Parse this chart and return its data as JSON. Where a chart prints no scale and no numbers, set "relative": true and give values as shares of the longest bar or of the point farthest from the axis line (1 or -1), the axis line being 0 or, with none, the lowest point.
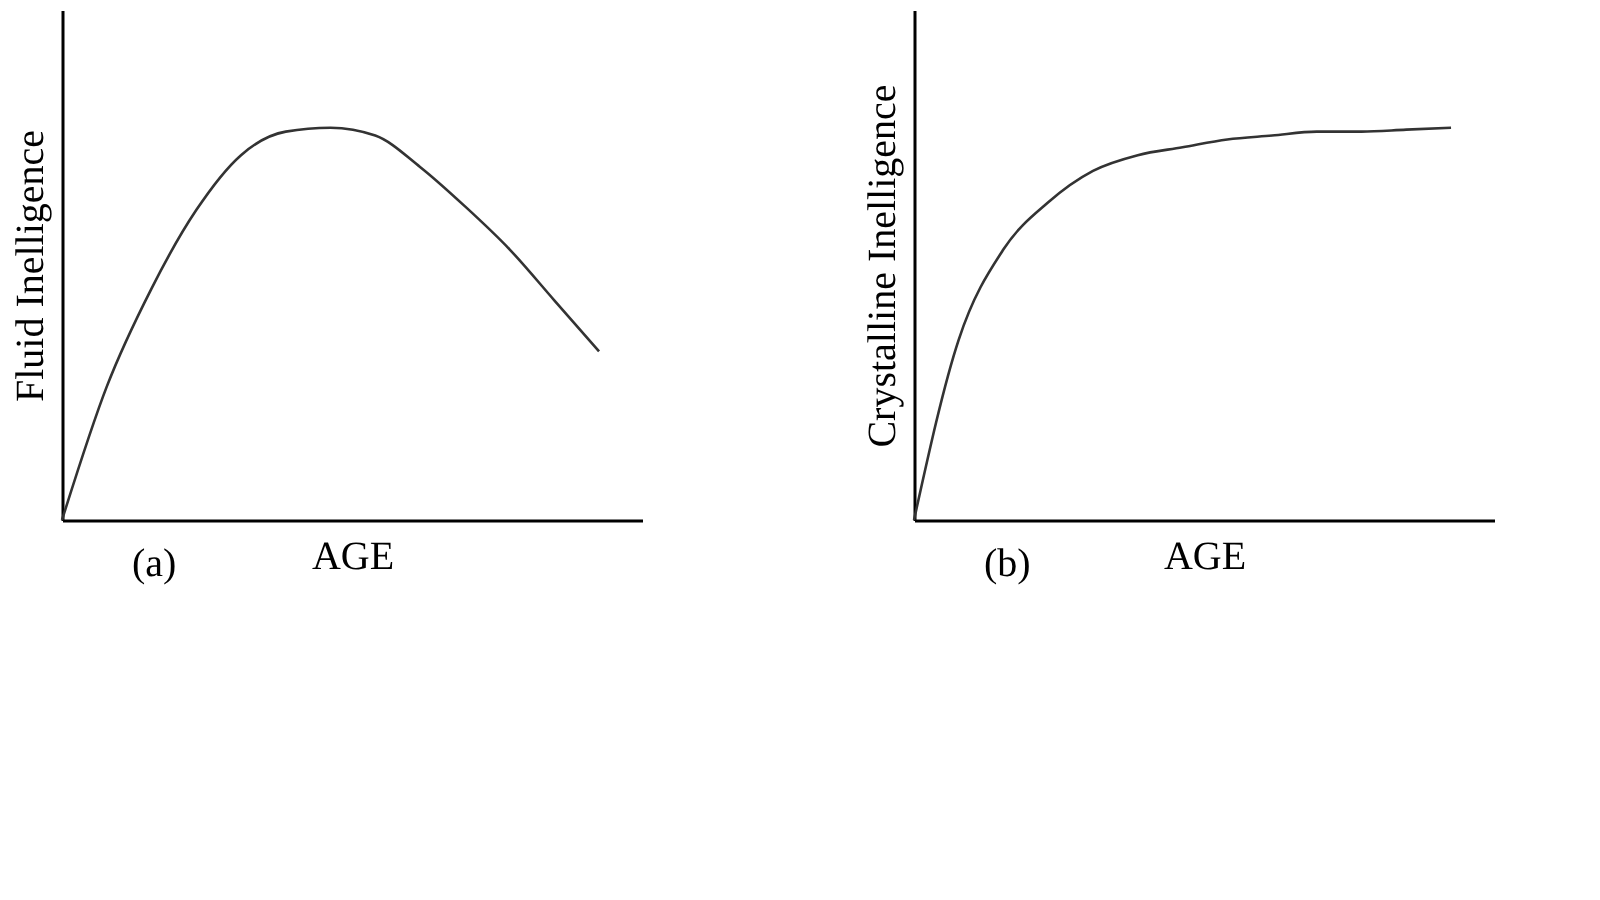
{
  "chart_data": [
    {
      "type": "line",
      "relative": true,
      "xlabel": "AGE",
      "ylabel": "Fluid Inelligence",
      "annotations": [
        "(a)"
      ],
      "color": "#333333",
      "tick_labels": false,
      "grid": false,
      "categories": [
        null,
        null,
        null,
        null,
        null,
        null,
        null,
        null,
        null,
        null,
        null,
        null,
        null
      ],
      "values": [
        0,
        0.34,
        0.59,
        0.79,
        0.93,
        0.99,
        1.0,
        0.98,
        0.9,
        0.8,
        0.69,
        0.56,
        0.43
      ]
    },
    {
      "type": "line",
      "relative": true,
      "xlabel": "AGE",
      "ylabel": "Crystalline Inelligence",
      "annotations": [
        "(b)"
      ],
      "color": "#333333",
      "tick_labels": false,
      "grid": false,
      "categories": [
        null,
        null,
        null,
        null,
        null,
        null,
        null,
        null,
        null,
        null,
        null,
        null,
        null
      ],
      "values": [
        0,
        0.46,
        0.69,
        0.81,
        0.89,
        0.93,
        0.95,
        0.97,
        0.98,
        0.99,
        0.99,
        0.995,
        1.0
      ]
    }
  ]
}
